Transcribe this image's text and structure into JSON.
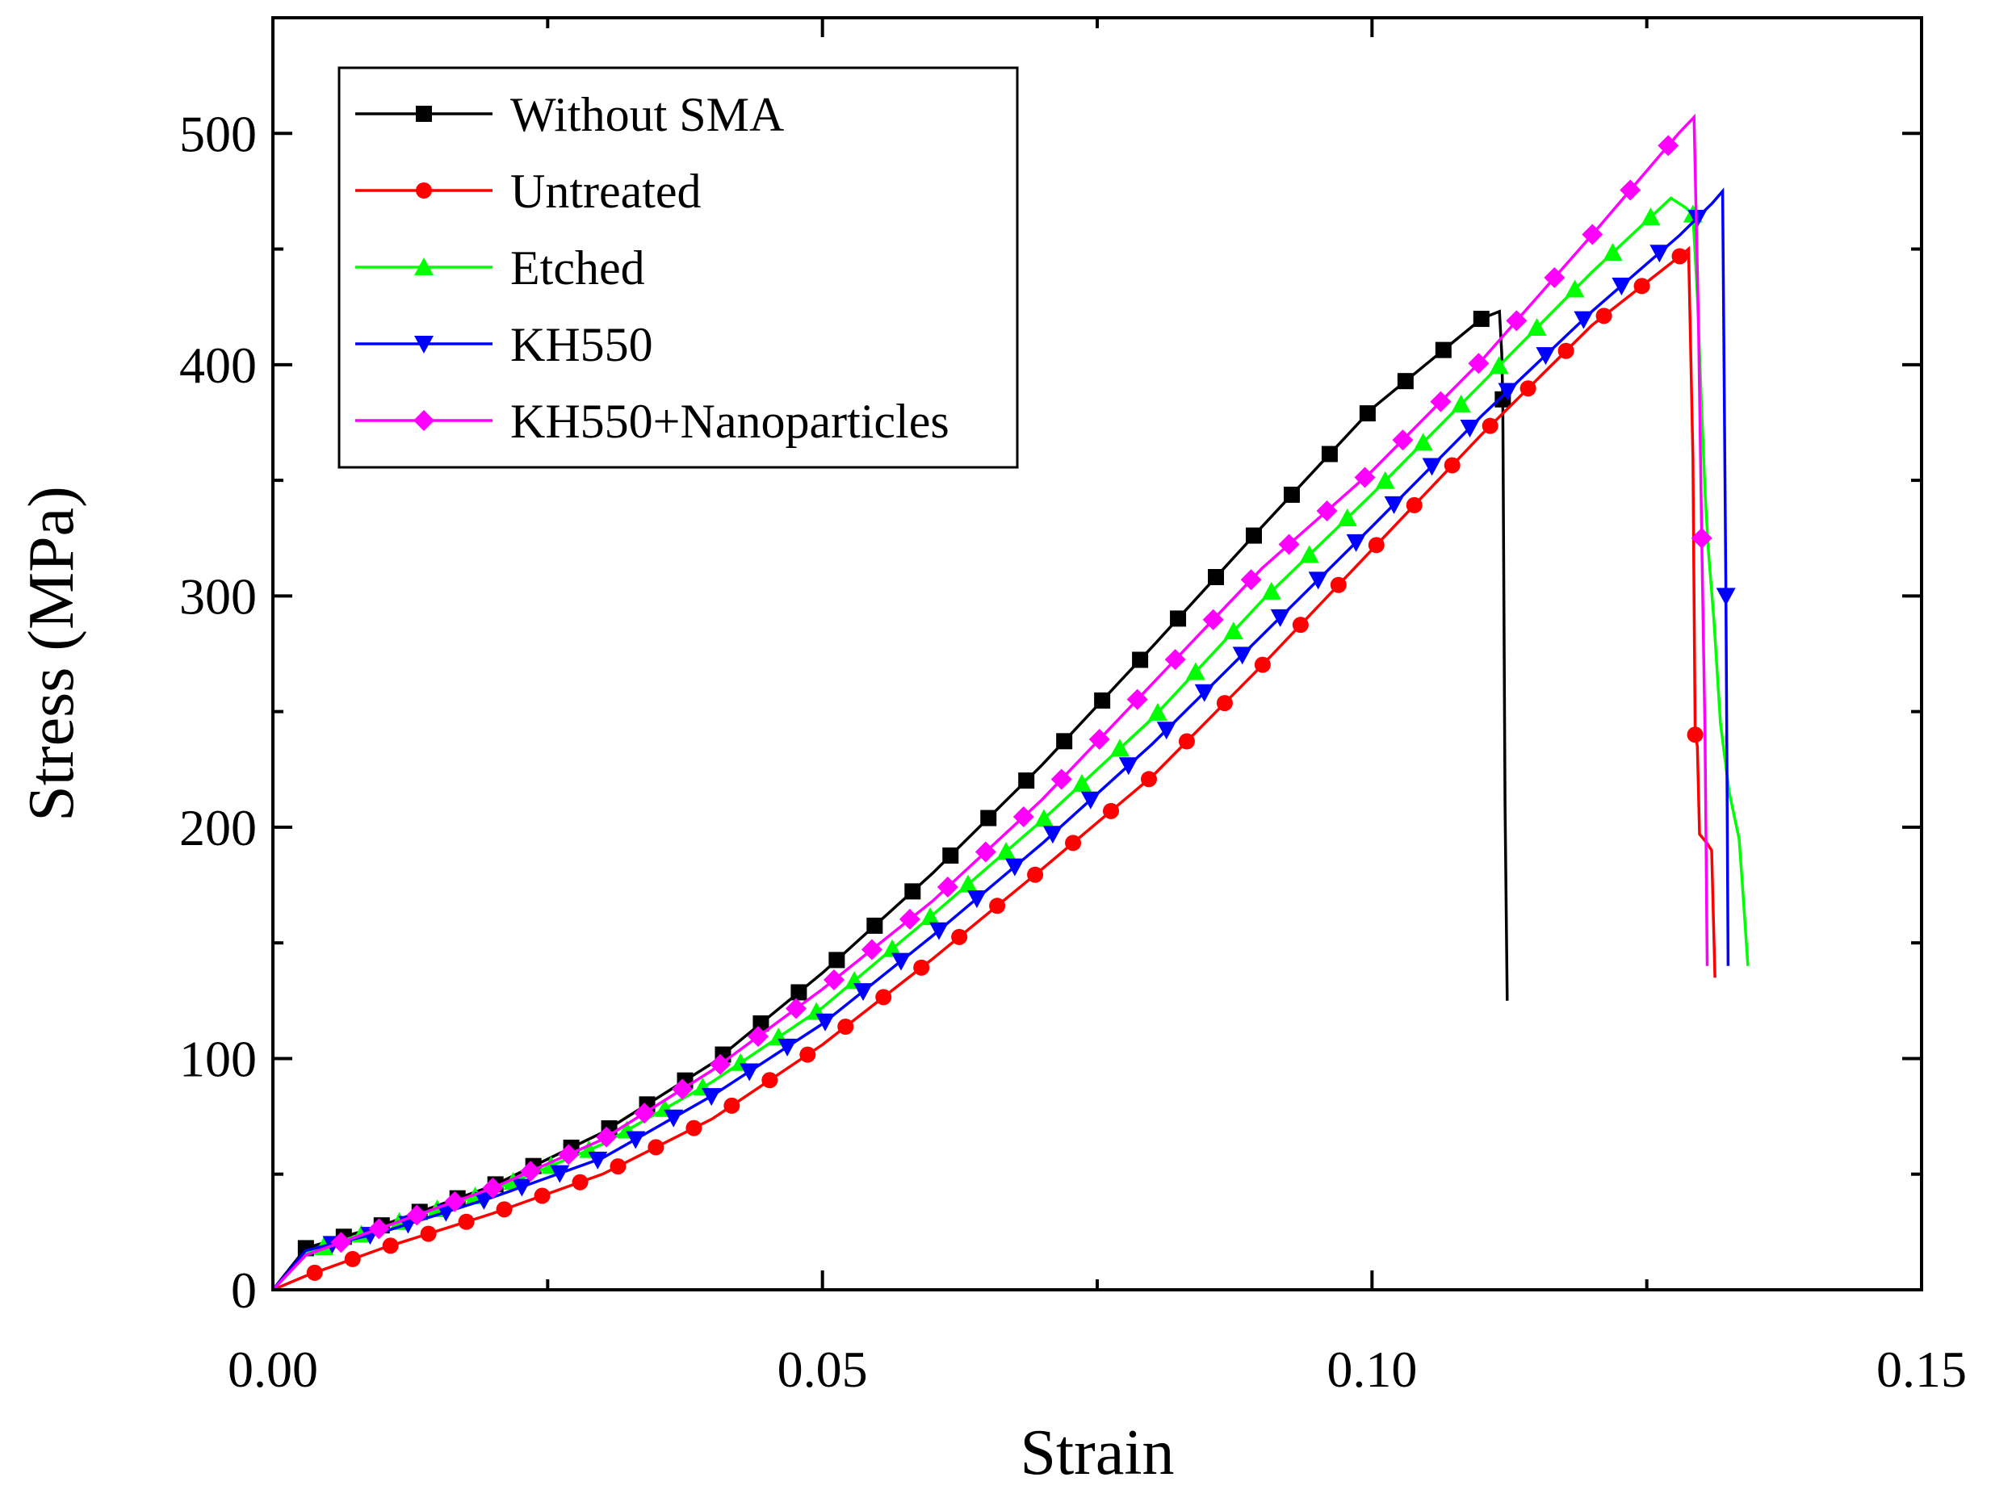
{
  "chart_data": {
    "type": "line",
    "title": "",
    "xlabel": "Strain",
    "ylabel": "Stress (MPa)",
    "xlim": [
      0,
      0.15
    ],
    "ylim": [
      0,
      550
    ],
    "xticks": [
      0.0,
      0.05,
      0.1,
      0.15
    ],
    "xtick_labels": [
      "0.00",
      "0.05",
      "0.10",
      "0.15"
    ],
    "yticks": [
      0,
      100,
      200,
      300,
      400,
      500
    ],
    "ytick_labels": [
      "0",
      "100",
      "200",
      "300",
      "400",
      "500"
    ],
    "legend_position": "top-left",
    "grid": false,
    "series": [
      {
        "name": "Without SMA",
        "color": "#000000",
        "marker": "square",
        "x": [
          0,
          0.003,
          0.01,
          0.02,
          0.03,
          0.04,
          0.05,
          0.06,
          0.07,
          0.08,
          0.09,
          0.1,
          0.11,
          0.1116,
          0.1118,
          0.1119,
          0.1121,
          0.1123
        ],
        "y": [
          0,
          18,
          28,
          45,
          68,
          98,
          137,
          180,
          227,
          278,
          330,
          381,
          420,
          423,
          405,
          385,
          210,
          125
        ]
      },
      {
        "name": "Untreated",
        "color": "#ff0000",
        "marker": "circle",
        "x": [
          0,
          0.003,
          0.01,
          0.02,
          0.03,
          0.04,
          0.05,
          0.06,
          0.07,
          0.08,
          0.09,
          0.1,
          0.11,
          0.12,
          0.1283,
          0.1288,
          0.1292,
          0.1294,
          0.1296,
          0.1298,
          0.1305,
          0.1309,
          0.1312
        ],
        "y": [
          0,
          6,
          18,
          33,
          50,
          74,
          106,
          143,
          182,
          222,
          270,
          320,
          370,
          417,
          448,
          450,
          360,
          240,
          235,
          197,
          193,
          190,
          135
        ]
      },
      {
        "name": "Etched",
        "color": "#00ff00",
        "marker": "triangle-up",
        "x": [
          0,
          0.003,
          0.01,
          0.02,
          0.03,
          0.04,
          0.05,
          0.06,
          0.07,
          0.08,
          0.09,
          0.1,
          0.11,
          0.12,
          0.1272,
          0.1285,
          0.1292,
          0.1296,
          0.13,
          0.1303,
          0.1306,
          0.1311,
          0.1317,
          0.1325,
          0.1334,
          0.1337,
          0.1342
        ],
        "y": [
          0,
          16,
          27,
          43,
          63,
          90,
          122,
          162,
          203,
          247,
          298,
          344,
          392,
          440,
          472,
          468,
          465,
          430,
          380,
          345,
          320,
          290,
          245,
          215,
          195,
          175,
          140
        ]
      },
      {
        "name": "KH550",
        "color": "#0000ff",
        "marker": "triangle-down",
        "x": [
          0,
          0.003,
          0.01,
          0.02,
          0.03,
          0.04,
          0.05,
          0.06,
          0.07,
          0.08,
          0.09,
          0.1,
          0.11,
          0.12,
          0.128,
          0.131,
          0.1319,
          0.1322,
          0.1324
        ],
        "y": [
          0,
          17,
          25,
          40,
          57,
          84,
          115,
          153,
          193,
          236,
          283,
          330,
          378,
          423,
          456,
          470,
          475,
          300,
          140
        ]
      },
      {
        "name": "KH550+Nanoparticles",
        "color": "#ff00ff",
        "marker": "diamond",
        "x": [
          0,
          0.003,
          0.01,
          0.02,
          0.03,
          0.04,
          0.05,
          0.06,
          0.07,
          0.08,
          0.09,
          0.1,
          0.11,
          0.12,
          0.1279,
          0.1293,
          0.1297,
          0.13,
          0.1303,
          0.1305
        ],
        "y": [
          0,
          15,
          27,
          44,
          65,
          95,
          130,
          168,
          212,
          262,
          312,
          354,
          402,
          456,
          500,
          507,
          420,
          325,
          240,
          140
        ]
      }
    ]
  }
}
